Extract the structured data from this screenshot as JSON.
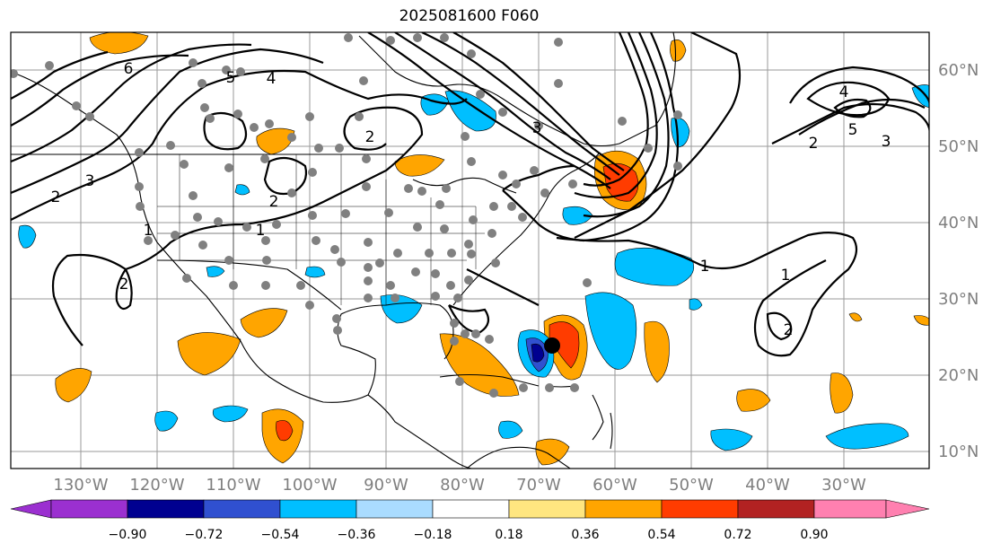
{
  "title": "2025081600 F060",
  "map": {
    "lon_labels": [
      "130°W",
      "120°W",
      "110°W",
      "100°W",
      "90°W",
      "80°W",
      "70°W",
      "60°W",
      "50°W",
      "40°W",
      "30°W"
    ],
    "lat_labels": [
      "60°N",
      "50°N",
      "40°N",
      "30°N",
      "20°N",
      "10°N"
    ],
    "contour_labels": [
      "6",
      "5",
      "4",
      "3",
      "2",
      "2",
      "1",
      "1",
      "1",
      "2",
      "2",
      "4",
      "5",
      "3",
      "2",
      "3",
      "2",
      "1"
    ],
    "marker": "storm-center"
  },
  "colorbar": {
    "tick_labels": [
      "−0.90",
      "−0.72",
      "−0.54",
      "−0.36",
      "−0.18",
      "0.18",
      "0.36",
      "0.54",
      "0.72",
      "0.90"
    ],
    "colors": [
      "#9b30d0",
      "#000090",
      "#3050d0",
      "#00bfff",
      "#aadcff",
      "#ffffff",
      "#ffe680",
      "#ffa500",
      "#ff3c00",
      "#b22222",
      "#ff80b0"
    ]
  }
}
